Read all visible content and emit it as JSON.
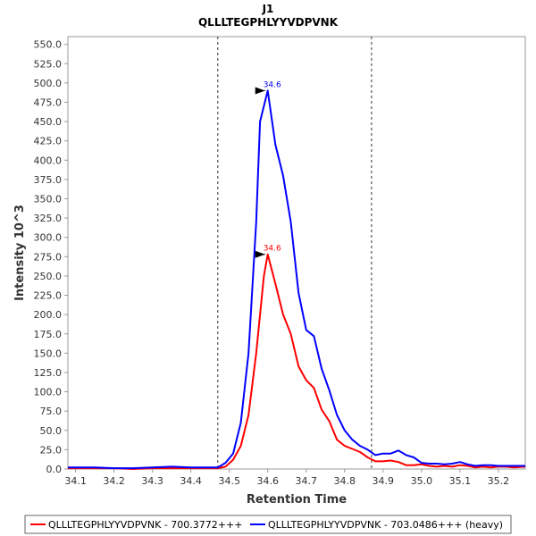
{
  "chart_data": {
    "type": "line",
    "title": "J1",
    "subtitle": "QLLLTEGPHLYYVDPVNK",
    "xlabel": "Retention Time",
    "ylabel": "Intensity 10^3",
    "xlim": [
      34.08,
      35.27
    ],
    "ylim": [
      0,
      560
    ],
    "x_ticks": [
      34.1,
      34.2,
      34.3,
      34.4,
      34.5,
      34.6,
      34.7,
      34.8,
      34.9,
      35.0,
      35.1,
      35.2
    ],
    "x_tick_labels": [
      "34.1",
      "34.2",
      "34.3",
      "34.4",
      "34.5",
      "34.6",
      "34.7",
      "34.8",
      "34.9",
      "35.0",
      "35.1",
      "35.2"
    ],
    "y_ticks": [
      0,
      25,
      50,
      75,
      100,
      125,
      150,
      175,
      200,
      225,
      250,
      275,
      300,
      325,
      350,
      375,
      400,
      425,
      450,
      475,
      500,
      525,
      550
    ],
    "y_tick_labels": [
      "0.0",
      "25.0",
      "50.0",
      "75.0",
      "100.0",
      "125.0",
      "150.0",
      "175.0",
      "200.0",
      "225.0",
      "250.0",
      "275.0",
      "300.0",
      "325.0",
      "350.0",
      "375.0",
      "400.0",
      "425.0",
      "450.0",
      "475.0",
      "500.0",
      "525.0",
      "550.0"
    ],
    "grid": false,
    "legend_position": "bottom",
    "integration_bounds": [
      34.47,
      34.87
    ],
    "series": [
      {
        "name": "QLLLTEGPHLYYVDPVNK - 700.3772+++",
        "color": "#ff0000",
        "peak": {
          "x": 34.6,
          "y": 278,
          "label": "34.6"
        },
        "x": [
          34.08,
          34.1,
          34.15,
          34.2,
          34.25,
          34.3,
          34.35,
          34.4,
          34.45,
          34.47,
          34.49,
          34.51,
          34.53,
          34.55,
          34.57,
          34.59,
          34.6,
          34.62,
          34.64,
          34.66,
          34.68,
          34.7,
          34.72,
          34.74,
          34.76,
          34.78,
          34.8,
          34.82,
          34.84,
          34.86,
          34.88,
          34.9,
          34.92,
          34.94,
          34.96,
          34.98,
          35.0,
          35.02,
          35.04,
          35.06,
          35.08,
          35.1,
          35.12,
          35.14,
          35.16,
          35.18,
          35.2,
          35.22,
          35.24,
          35.27
        ],
        "y": [
          1,
          1,
          1,
          1,
          0,
          1,
          1,
          1,
          1,
          1,
          3,
          12,
          30,
          70,
          150,
          250,
          278,
          240,
          200,
          175,
          133,
          115,
          105,
          77,
          62,
          38,
          30,
          26,
          22,
          15,
          10,
          10,
          11,
          9,
          5,
          5,
          6,
          4,
          3,
          4,
          3,
          5,
          4,
          2,
          3,
          2,
          3,
          3,
          2,
          3
        ]
      },
      {
        "name": "QLLLTEGPHLYYVDPVNK - 703.0486+++ (heavy)",
        "color": "#0000ff",
        "peak": {
          "x": 34.6,
          "y": 490,
          "label": "34.6"
        },
        "x": [
          34.08,
          34.1,
          34.15,
          34.2,
          34.25,
          34.3,
          34.35,
          34.4,
          34.45,
          34.47,
          34.49,
          34.51,
          34.53,
          34.55,
          34.57,
          34.58,
          34.6,
          34.62,
          34.64,
          34.66,
          34.68,
          34.7,
          34.72,
          34.74,
          34.76,
          34.78,
          34.8,
          34.82,
          34.84,
          34.86,
          34.88,
          34.9,
          34.92,
          34.94,
          34.96,
          34.98,
          35.0,
          35.02,
          35.04,
          35.06,
          35.08,
          35.1,
          35.12,
          35.14,
          35.16,
          35.18,
          35.2,
          35.22,
          35.24,
          35.27
        ],
        "y": [
          2,
          2,
          2,
          1,
          1,
          2,
          3,
          2,
          2,
          2,
          8,
          20,
          60,
          150,
          320,
          450,
          490,
          420,
          380,
          320,
          228,
          180,
          172,
          130,
          102,
          70,
          50,
          38,
          30,
          25,
          18,
          20,
          20,
          24,
          18,
          15,
          8,
          7,
          7,
          6,
          7,
          9,
          6,
          4,
          5,
          5,
          4,
          4,
          4,
          4
        ]
      }
    ]
  }
}
